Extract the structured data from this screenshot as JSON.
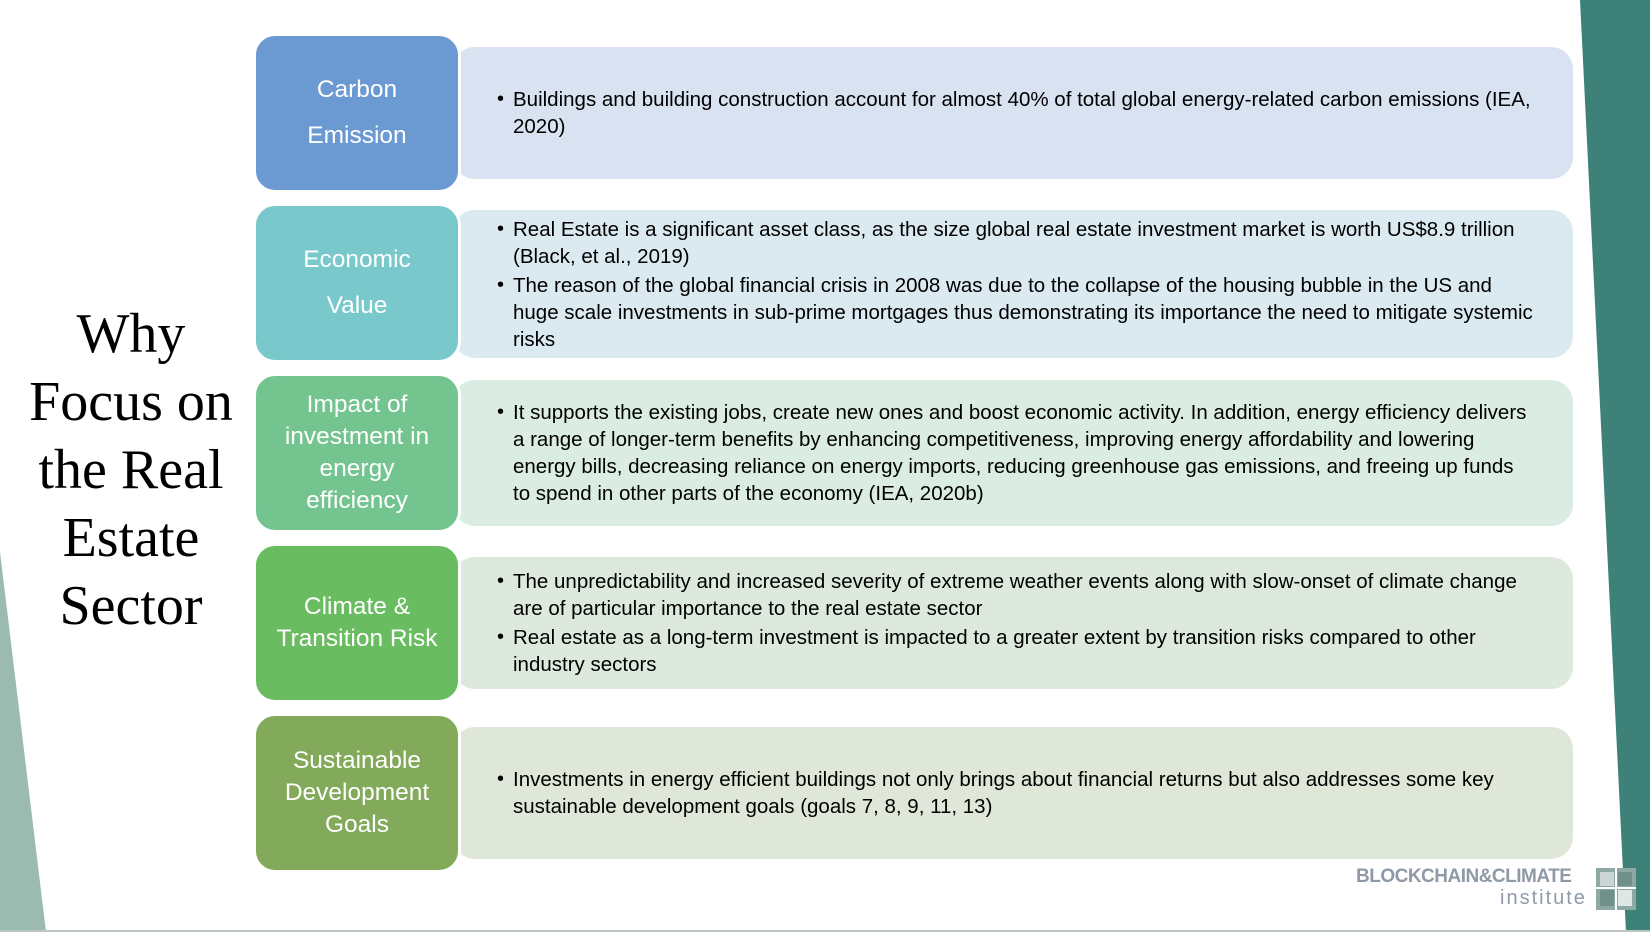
{
  "side_title": {
    "lines": [
      "Why",
      "Focus on",
      "the Real",
      "Estate",
      "Sector"
    ]
  },
  "rows": [
    {
      "label_lines": [
        "Carbon",
        "Emission"
      ],
      "label_color": "#6b99d1",
      "panel_color": "#d9e2f1",
      "bullets": [
        "Buildings and building construction account for almost 40% of total global energy-related carbon emissions (IEA, 2020)"
      ]
    },
    {
      "label_lines": [
        "Economic",
        "Value"
      ],
      "label_color": "#79c8cc",
      "panel_color": "#dbeaf0",
      "bullets": [
        "Real Estate is a significant asset class, as the size global real estate investment market is worth US$8.9 trillion (Black, et al., 2019)",
        "The reason of the global financial crisis in 2008 was due to the collapse of the housing bubble in the US and huge scale investments in  sub-prime mortgages thus demonstrating its importance the need to mitigate systemic risks"
      ]
    },
    {
      "label_lines": [
        "Impact of",
        "investment in",
        "energy",
        "efficiency"
      ],
      "label_color": "#74c490",
      "panel_color": "#dbece2",
      "bullets": [
        "It supports the existing jobs, create new ones and boost economic activity. In addition, energy efficiency delivers a range of longer-term benefits by enhancing competitiveness, improving energy affordability and lowering energy bills, decreasing reliance on energy imports, reducing greenhouse gas emissions, and freeing up funds to spend in other parts of the economy (IEA, 2020b)"
      ]
    },
    {
      "label_lines": [
        "Climate &",
        "Transition Risk"
      ],
      "label_color": "#6abc60",
      "panel_color": "#dde9dc",
      "bullets": [
        "The unpredictability and increased severity of extreme weather events along with slow-onset of climate change are of particular importance to the real estate sector",
        "Real estate as a long-term investment is impacted to a greater extent by transition risks compared to other industry sectors"
      ]
    },
    {
      "label_lines": [
        "Sustainable",
        "Development",
        "Goals"
      ],
      "label_color": "#82aa5a",
      "panel_color": "#dfe8d8",
      "bullets": [
        "Investments in energy efficient buildings not only brings about financial returns but also addresses some key sustainable development goals (goals 7, 8, 9, 11, 13)"
      ]
    }
  ],
  "logo": {
    "top": "BLOCKCHAIN&CLIMATE",
    "bottom": "institute"
  },
  "colors": {
    "deco_right": "#3d8179",
    "deco_left": "#9bbab0"
  }
}
